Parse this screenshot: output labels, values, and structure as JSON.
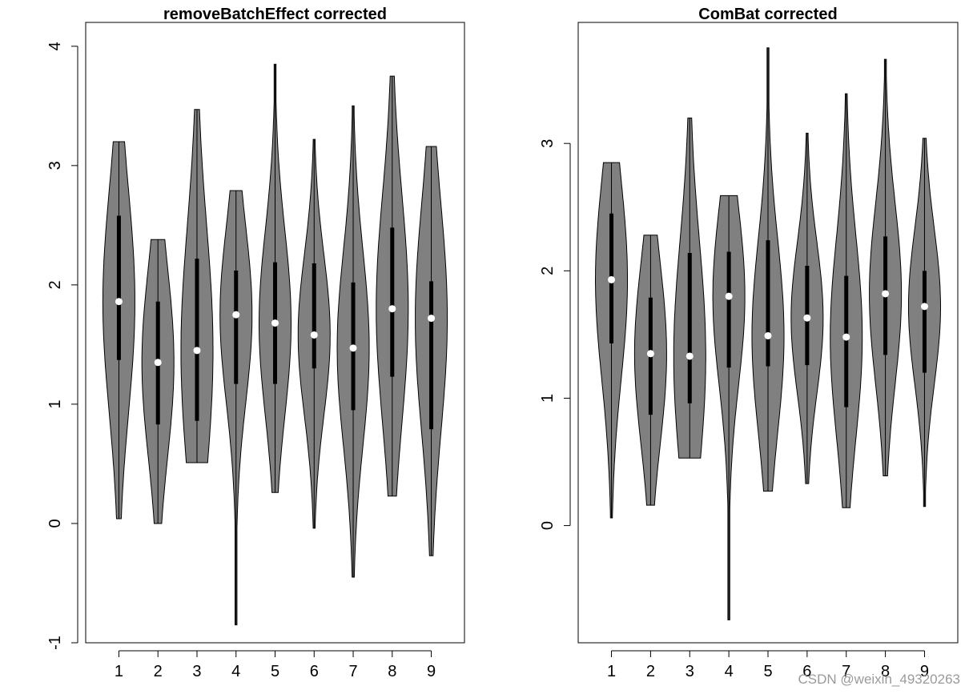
{
  "chart_data": [
    {
      "type": "violin",
      "title": "removeBatchEffect corrected",
      "xlabel": "",
      "ylabel": "",
      "categories": [
        "1",
        "2",
        "3",
        "4",
        "5",
        "6",
        "7",
        "8",
        "9"
      ],
      "yticks": [
        "-1",
        "0",
        "1",
        "2",
        "3",
        "4"
      ],
      "ylim": [
        -1.0,
        4.2
      ],
      "grid": false,
      "violin_fill": "#808080",
      "violins": [
        {
          "min": 0.04,
          "q1": 1.37,
          "median": 1.86,
          "q3": 2.58,
          "max": 3.2
        },
        {
          "min": 0.0,
          "q1": 0.83,
          "median": 1.35,
          "q3": 1.86,
          "max": 2.38
        },
        {
          "min": 0.51,
          "q1": 0.86,
          "median": 1.45,
          "q3": 2.22,
          "max": 3.47
        },
        {
          "min": -0.85,
          "q1": 1.17,
          "median": 1.75,
          "q3": 2.12,
          "max": 2.79
        },
        {
          "min": 0.26,
          "q1": 1.17,
          "median": 1.68,
          "q3": 2.19,
          "max": 3.85
        },
        {
          "min": -0.04,
          "q1": 1.3,
          "median": 1.58,
          "q3": 2.18,
          "max": 3.22
        },
        {
          "min": -0.45,
          "q1": 0.95,
          "median": 1.47,
          "q3": 2.02,
          "max": 3.5
        },
        {
          "min": 0.23,
          "q1": 1.23,
          "median": 1.8,
          "q3": 2.48,
          "max": 3.75
        },
        {
          "min": -0.27,
          "q1": 0.79,
          "median": 1.72,
          "q3": 2.03,
          "max": 3.16
        }
      ]
    },
    {
      "type": "violin",
      "title": "ComBat corrected",
      "xlabel": "",
      "ylabel": "",
      "categories": [
        "1",
        "2",
        "3",
        "4",
        "5",
        "6",
        "7",
        "8",
        "9"
      ],
      "yticks": [
        "0",
        "1",
        "2",
        "3"
      ],
      "ylim": [
        -0.92,
        3.95
      ],
      "grid": false,
      "violin_fill": "#808080",
      "violins": [
        {
          "min": 0.06,
          "q1": 1.43,
          "median": 1.93,
          "q3": 2.45,
          "max": 2.85
        },
        {
          "min": 0.16,
          "q1": 0.87,
          "median": 1.35,
          "q3": 1.79,
          "max": 2.28
        },
        {
          "min": 0.53,
          "q1": 0.96,
          "median": 1.33,
          "q3": 2.14,
          "max": 3.2
        },
        {
          "min": -0.74,
          "q1": 1.24,
          "median": 1.8,
          "q3": 2.15,
          "max": 2.59
        },
        {
          "min": 0.27,
          "q1": 1.25,
          "median": 1.49,
          "q3": 2.24,
          "max": 3.75
        },
        {
          "min": 0.33,
          "q1": 1.26,
          "median": 1.63,
          "q3": 2.04,
          "max": 3.08
        },
        {
          "min": 0.14,
          "q1": 0.93,
          "median": 1.48,
          "q3": 1.96,
          "max": 3.39
        },
        {
          "min": 0.39,
          "q1": 1.34,
          "median": 1.82,
          "q3": 2.27,
          "max": 3.66
        },
        {
          "min": 0.15,
          "q1": 1.2,
          "median": 1.72,
          "q3": 2.0,
          "max": 3.04
        }
      ]
    }
  ],
  "watermark": "CSDN @weixin_49320263"
}
